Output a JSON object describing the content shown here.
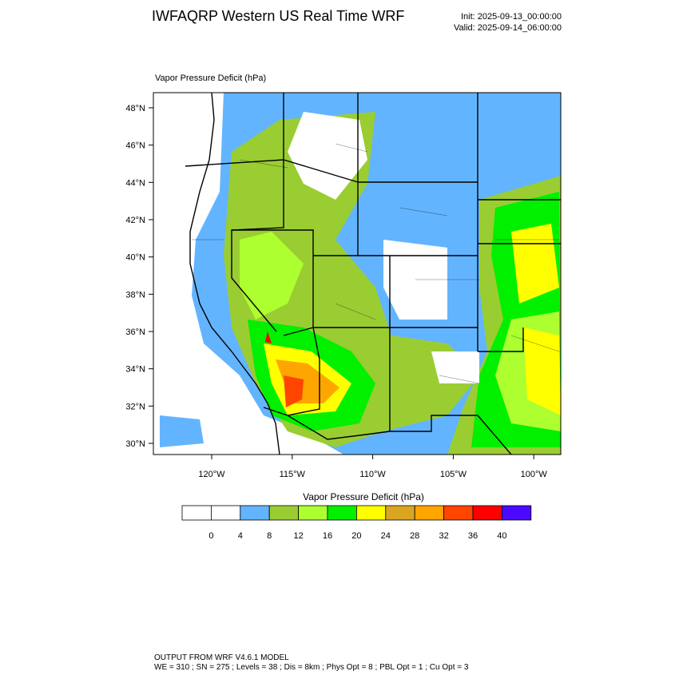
{
  "header": {
    "title": "IWFAQRP Western US Real Time WRF",
    "init": "Init: 2025-09-13_00:00:00",
    "valid": "Valid: 2025-09-14_06:00:00"
  },
  "map": {
    "label": "Vapor Pressure Deficit   (hPa)",
    "lat_labels": [
      "30°N",
      "32°N",
      "34°N",
      "36°N",
      "38°N",
      "40°N",
      "42°N",
      "44°N",
      "46°N",
      "48°N"
    ],
    "lon_labels": [
      "120°W",
      "115°W",
      "110°W",
      "105°W",
      "100°W"
    ]
  },
  "colorbar": {
    "title": "Vapor Pressure Deficit  (hPa)",
    "levels": [
      0,
      4,
      8,
      12,
      16,
      20,
      24,
      28,
      32,
      36,
      40
    ],
    "colors": [
      "#ffffff",
      "#ffffff",
      "#63b4ff",
      "#9acd32",
      "#adff2f",
      "#00f000",
      "#ffff00",
      "#daa520",
      "#ffa500",
      "#ff4500",
      "#ff0000",
      "#4b0aff"
    ]
  },
  "footer": {
    "line1": "OUTPUT FROM WRF V4.6.1 MODEL",
    "line2": "WE = 310 ; SN = 275 ; Levels = 38 ; Dis = 8km ; Phys Opt = 8 ; PBL Opt = 1 ; Cu Opt = 3"
  }
}
